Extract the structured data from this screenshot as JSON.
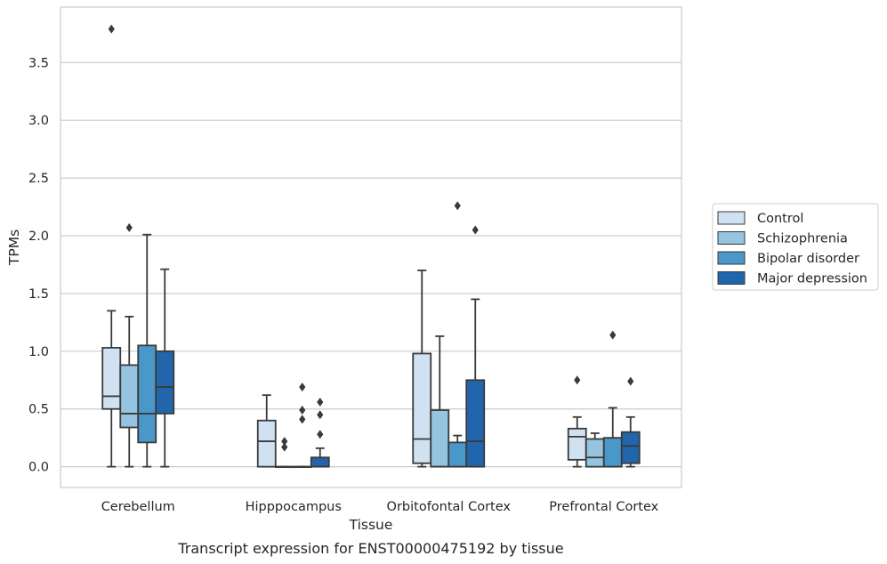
{
  "chart_data": {
    "type": "box",
    "caption": "Transcript expression for ENST00000475192 by tissue",
    "xlabel": "Tissue",
    "ylabel": "TPMs",
    "ylim": [
      -0.18,
      3.98
    ],
    "yticks": [
      0.0,
      0.5,
      1.0,
      1.5,
      2.0,
      2.5,
      3.0,
      3.5
    ],
    "ytick_labels": [
      "0.0",
      "0.5",
      "1.0",
      "1.5",
      "2.0",
      "2.5",
      "3.0",
      "3.5"
    ],
    "grid": "horizontal",
    "legend_position": "right",
    "categories": [
      "Cerebellum",
      "Hipppocampus",
      "Orbitofontal Cortex",
      "Prefrontal Cortex"
    ],
    "series": [
      {
        "name": "Control",
        "color": "#d0e1f2",
        "boxes": [
          {
            "whislo": 0.0,
            "q1": 0.5,
            "med": 0.61,
            "q3": 1.03,
            "whishi": 1.35,
            "fliers": [
              3.79
            ]
          },
          {
            "whislo": 0.0,
            "q1": 0.0,
            "med": 0.22,
            "q3": 0.4,
            "whishi": 0.62,
            "fliers": []
          },
          {
            "whislo": 0.0,
            "q1": 0.03,
            "med": 0.24,
            "q3": 0.98,
            "whishi": 1.7,
            "fliers": []
          },
          {
            "whislo": 0.0,
            "q1": 0.06,
            "med": 0.26,
            "q3": 0.33,
            "whishi": 0.43,
            "fliers": [
              0.75
            ]
          }
        ]
      },
      {
        "name": "Schizophrenia",
        "color": "#94c4df",
        "boxes": [
          {
            "whislo": 0.0,
            "q1": 0.34,
            "med": 0.46,
            "q3": 0.88,
            "whishi": 1.3,
            "fliers": [
              2.07
            ]
          },
          {
            "whislo": 0.0,
            "q1": 0.0,
            "med": 0.0,
            "q3": 0.0,
            "whishi": 0.0,
            "fliers": [
              0.17,
              0.22
            ]
          },
          {
            "whislo": 0.0,
            "q1": 0.0,
            "med": 0.0,
            "q3": 0.49,
            "whishi": 1.13,
            "fliers": []
          },
          {
            "whislo": 0.0,
            "q1": 0.0,
            "med": 0.08,
            "q3": 0.24,
            "whishi": 0.29,
            "fliers": []
          }
        ]
      },
      {
        "name": "Bipolar disorder",
        "color": "#4a98c9",
        "boxes": [
          {
            "whislo": 0.0,
            "q1": 0.21,
            "med": 0.46,
            "q3": 1.05,
            "whishi": 2.01,
            "fliers": []
          },
          {
            "whislo": 0.0,
            "q1": 0.0,
            "med": 0.0,
            "q3": 0.0,
            "whishi": 0.0,
            "fliers": [
              0.41,
              0.49,
              0.69
            ]
          },
          {
            "whislo": 0.0,
            "q1": 0.0,
            "med": 0.0,
            "q3": 0.21,
            "whishi": 0.27,
            "fliers": [
              2.26
            ]
          },
          {
            "whislo": 0.0,
            "q1": 0.0,
            "med": 0.0,
            "q3": 0.25,
            "whishi": 0.51,
            "fliers": [
              1.14
            ]
          }
        ]
      },
      {
        "name": "Major depression",
        "color": "#2166ac",
        "boxes": [
          {
            "whislo": 0.0,
            "q1": 0.46,
            "med": 0.69,
            "q3": 1.0,
            "whishi": 1.71,
            "fliers": []
          },
          {
            "whislo": 0.0,
            "q1": 0.0,
            "med": 0.0,
            "q3": 0.08,
            "whishi": 0.16,
            "fliers": [
              0.28,
              0.45,
              0.56
            ]
          },
          {
            "whislo": 0.0,
            "q1": 0.0,
            "med": 0.22,
            "q3": 0.75,
            "whishi": 1.45,
            "fliers": [
              2.05
            ]
          },
          {
            "whislo": 0.0,
            "q1": 0.03,
            "med": 0.18,
            "q3": 0.3,
            "whishi": 0.43,
            "fliers": [
              0.74
            ]
          }
        ]
      }
    ]
  }
}
